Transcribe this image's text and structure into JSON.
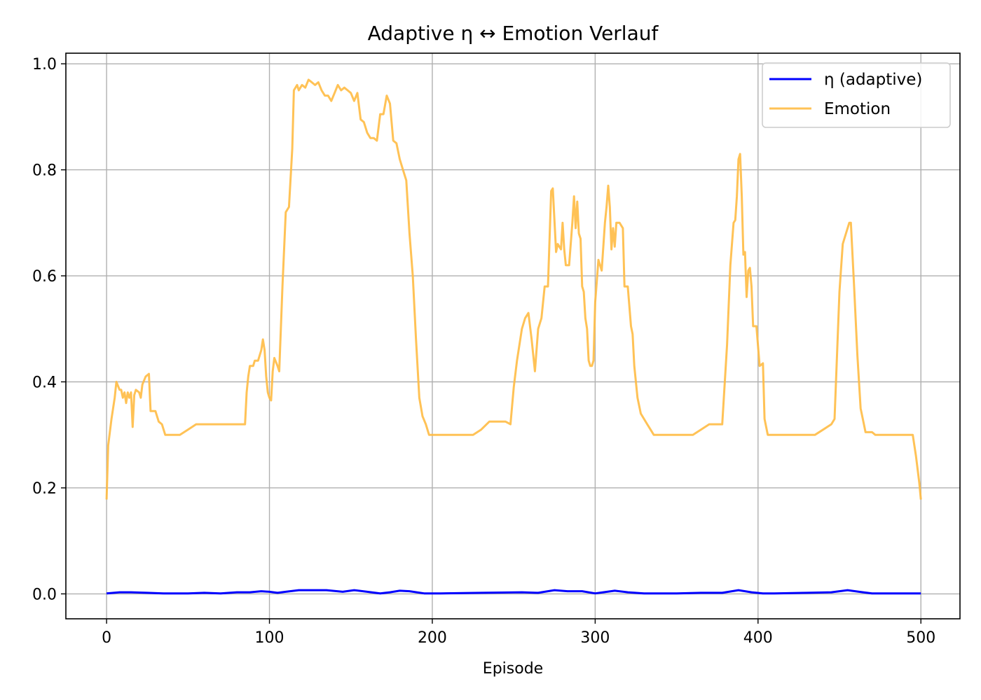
{
  "chart_data": {
    "type": "line",
    "title": "Adaptive η ↔ Emotion Verlauf",
    "xlabel": "Episode",
    "ylabel": "",
    "xlim": [
      -25,
      524
    ],
    "ylim": [
      -0.047,
      1.02
    ],
    "x_ticks": [
      0,
      100,
      200,
      300,
      400,
      500
    ],
    "y_ticks": [
      0.0,
      0.2,
      0.4,
      0.6,
      0.8,
      1.0
    ],
    "x_tick_labels": [
      "0",
      "100",
      "200",
      "300",
      "400",
      "500"
    ],
    "y_tick_labels": [
      "0.0",
      "0.2",
      "0.4",
      "0.6",
      "0.8",
      "1.0"
    ],
    "grid": true,
    "legend_position": "top-right",
    "series": [
      {
        "name": "η (adaptive)",
        "color": "#0000ff",
        "points": [
          [
            0,
            0.001
          ],
          [
            8,
            0.003
          ],
          [
            15,
            0.003
          ],
          [
            25,
            0.002
          ],
          [
            35,
            0.001
          ],
          [
            50,
            0.001
          ],
          [
            60,
            0.002
          ],
          [
            70,
            0.001
          ],
          [
            80,
            0.003
          ],
          [
            88,
            0.003
          ],
          [
            95,
            0.005
          ],
          [
            100,
            0.004
          ],
          [
            105,
            0.002
          ],
          [
            110,
            0.004
          ],
          [
            118,
            0.007
          ],
          [
            125,
            0.007
          ],
          [
            135,
            0.007
          ],
          [
            145,
            0.004
          ],
          [
            152,
            0.007
          ],
          [
            160,
            0.004
          ],
          [
            168,
            0.001
          ],
          [
            174,
            0.003
          ],
          [
            180,
            0.006
          ],
          [
            186,
            0.005
          ],
          [
            195,
            0.001
          ],
          [
            205,
            0.001
          ],
          [
            230,
            0.002
          ],
          [
            255,
            0.003
          ],
          [
            265,
            0.002
          ],
          [
            275,
            0.007
          ],
          [
            283,
            0.005
          ],
          [
            292,
            0.005
          ],
          [
            300,
            0.001
          ],
          [
            305,
            0.003
          ],
          [
            312,
            0.006
          ],
          [
            320,
            0.003
          ],
          [
            330,
            0.001
          ],
          [
            350,
            0.001
          ],
          [
            365,
            0.002
          ],
          [
            378,
            0.002
          ],
          [
            388,
            0.007
          ],
          [
            396,
            0.003
          ],
          [
            403,
            0.001
          ],
          [
            410,
            0.001
          ],
          [
            430,
            0.002
          ],
          [
            445,
            0.003
          ],
          [
            455,
            0.007
          ],
          [
            462,
            0.004
          ],
          [
            470,
            0.001
          ],
          [
            500,
            0.001
          ]
        ]
      },
      {
        "name": "Emotion",
        "color": "#ffbb44",
        "points": [
          [
            0,
            0.178
          ],
          [
            1,
            0.28
          ],
          [
            3,
            0.33
          ],
          [
            5,
            0.37
          ],
          [
            6,
            0.4
          ],
          [
            8,
            0.385
          ],
          [
            9,
            0.385
          ],
          [
            10,
            0.37
          ],
          [
            11,
            0.38
          ],
          [
            12,
            0.36
          ],
          [
            13,
            0.38
          ],
          [
            14,
            0.37
          ],
          [
            15,
            0.38
          ],
          [
            16,
            0.315
          ],
          [
            17,
            0.375
          ],
          [
            18,
            0.385
          ],
          [
            20,
            0.38
          ],
          [
            21,
            0.37
          ],
          [
            22,
            0.395
          ],
          [
            24,
            0.41
          ],
          [
            26,
            0.415
          ],
          [
            27,
            0.345
          ],
          [
            30,
            0.345
          ],
          [
            32,
            0.325
          ],
          [
            34,
            0.32
          ],
          [
            36,
            0.3
          ],
          [
            40,
            0.3
          ],
          [
            45,
            0.3
          ],
          [
            50,
            0.31
          ],
          [
            55,
            0.32
          ],
          [
            60,
            0.32
          ],
          [
            70,
            0.32
          ],
          [
            80,
            0.32
          ],
          [
            85,
            0.32
          ],
          [
            86,
            0.38
          ],
          [
            87,
            0.41
          ],
          [
            88,
            0.43
          ],
          [
            90,
            0.43
          ],
          [
            91,
            0.44
          ],
          [
            93,
            0.44
          ],
          [
            95,
            0.46
          ],
          [
            96,
            0.48
          ],
          [
            97,
            0.46
          ],
          [
            98,
            0.41
          ],
          [
            99,
            0.38
          ],
          [
            100,
            0.37
          ],
          [
            101,
            0.365
          ],
          [
            102,
            0.42
          ],
          [
            103,
            0.445
          ],
          [
            105,
            0.43
          ],
          [
            106,
            0.42
          ],
          [
            107,
            0.5
          ],
          [
            108,
            0.58
          ],
          [
            110,
            0.72
          ],
          [
            112,
            0.73
          ],
          [
            114,
            0.84
          ],
          [
            115,
            0.95
          ],
          [
            117,
            0.96
          ],
          [
            118,
            0.95
          ],
          [
            120,
            0.96
          ],
          [
            122,
            0.955
          ],
          [
            124,
            0.97
          ],
          [
            126,
            0.965
          ],
          [
            128,
            0.96
          ],
          [
            130,
            0.965
          ],
          [
            132,
            0.95
          ],
          [
            134,
            0.94
          ],
          [
            136,
            0.94
          ],
          [
            138,
            0.93
          ],
          [
            140,
            0.945
          ],
          [
            142,
            0.96
          ],
          [
            144,
            0.95
          ],
          [
            146,
            0.955
          ],
          [
            148,
            0.95
          ],
          [
            150,
            0.945
          ],
          [
            152,
            0.93
          ],
          [
            154,
            0.945
          ],
          [
            156,
            0.895
          ],
          [
            158,
            0.89
          ],
          [
            160,
            0.87
          ],
          [
            162,
            0.86
          ],
          [
            164,
            0.86
          ],
          [
            166,
            0.855
          ],
          [
            168,
            0.905
          ],
          [
            170,
            0.905
          ],
          [
            172,
            0.94
          ],
          [
            174,
            0.925
          ],
          [
            176,
            0.855
          ],
          [
            178,
            0.85
          ],
          [
            180,
            0.82
          ],
          [
            182,
            0.8
          ],
          [
            184,
            0.78
          ],
          [
            186,
            0.68
          ],
          [
            188,
            0.6
          ],
          [
            190,
            0.48
          ],
          [
            192,
            0.37
          ],
          [
            194,
            0.335
          ],
          [
            196,
            0.32
          ],
          [
            198,
            0.3
          ],
          [
            205,
            0.3
          ],
          [
            215,
            0.3
          ],
          [
            225,
            0.3
          ],
          [
            230,
            0.31
          ],
          [
            235,
            0.325
          ],
          [
            240,
            0.325
          ],
          [
            245,
            0.325
          ],
          [
            248,
            0.32
          ],
          [
            250,
            0.39
          ],
          [
            252,
            0.44
          ],
          [
            255,
            0.5
          ],
          [
            257,
            0.52
          ],
          [
            259,
            0.53
          ],
          [
            261,
            0.48
          ],
          [
            263,
            0.42
          ],
          [
            265,
            0.5
          ],
          [
            267,
            0.52
          ],
          [
            269,
            0.58
          ],
          [
            271,
            0.58
          ],
          [
            273,
            0.76
          ],
          [
            274,
            0.765
          ],
          [
            276,
            0.645
          ],
          [
            277,
            0.66
          ],
          [
            279,
            0.65
          ],
          [
            280,
            0.7
          ],
          [
            281,
            0.65
          ],
          [
            282,
            0.62
          ],
          [
            284,
            0.62
          ],
          [
            286,
            0.7
          ],
          [
            287,
            0.75
          ],
          [
            288,
            0.69
          ],
          [
            289,
            0.74
          ],
          [
            290,
            0.68
          ],
          [
            291,
            0.67
          ],
          [
            292,
            0.58
          ],
          [
            293,
            0.57
          ],
          [
            294,
            0.52
          ],
          [
            295,
            0.5
          ],
          [
            296,
            0.44
          ],
          [
            297,
            0.43
          ],
          [
            298,
            0.43
          ],
          [
            299,
            0.44
          ],
          [
            300,
            0.55
          ],
          [
            302,
            0.63
          ],
          [
            304,
            0.61
          ],
          [
            306,
            0.7
          ],
          [
            307,
            0.73
          ],
          [
            308,
            0.77
          ],
          [
            309,
            0.73
          ],
          [
            310,
            0.65
          ],
          [
            311,
            0.69
          ],
          [
            312,
            0.655
          ],
          [
            313,
            0.7
          ],
          [
            315,
            0.7
          ],
          [
            317,
            0.69
          ],
          [
            318,
            0.58
          ],
          [
            320,
            0.58
          ],
          [
            322,
            0.505
          ],
          [
            323,
            0.49
          ],
          [
            324,
            0.43
          ],
          [
            326,
            0.37
          ],
          [
            328,
            0.34
          ],
          [
            330,
            0.33
          ],
          [
            332,
            0.32
          ],
          [
            334,
            0.31
          ],
          [
            336,
            0.3
          ],
          [
            345,
            0.3
          ],
          [
            355,
            0.3
          ],
          [
            360,
            0.3
          ],
          [
            365,
            0.31
          ],
          [
            370,
            0.32
          ],
          [
            378,
            0.32
          ],
          [
            381,
            0.47
          ],
          [
            383,
            0.62
          ],
          [
            385,
            0.7
          ],
          [
            386,
            0.705
          ],
          [
            387,
            0.75
          ],
          [
            388,
            0.82
          ],
          [
            389,
            0.83
          ],
          [
            390,
            0.75
          ],
          [
            391,
            0.64
          ],
          [
            392,
            0.645
          ],
          [
            393,
            0.56
          ],
          [
            394,
            0.61
          ],
          [
            395,
            0.615
          ],
          [
            396,
            0.58
          ],
          [
            397,
            0.505
          ],
          [
            399,
            0.505
          ],
          [
            401,
            0.43
          ],
          [
            403,
            0.435
          ],
          [
            404,
            0.33
          ],
          [
            406,
            0.3
          ],
          [
            410,
            0.3
          ],
          [
            420,
            0.3
          ],
          [
            435,
            0.3
          ],
          [
            440,
            0.31
          ],
          [
            445,
            0.32
          ],
          [
            447,
            0.33
          ],
          [
            450,
            0.57
          ],
          [
            452,
            0.66
          ],
          [
            454,
            0.68
          ],
          [
            456,
            0.7
          ],
          [
            457,
            0.7
          ],
          [
            459,
            0.58
          ],
          [
            461,
            0.45
          ],
          [
            463,
            0.35
          ],
          [
            465,
            0.32
          ],
          [
            466,
            0.305
          ],
          [
            470,
            0.305
          ],
          [
            472,
            0.3
          ],
          [
            480,
            0.3
          ],
          [
            490,
            0.3
          ],
          [
            495,
            0.3
          ],
          [
            497,
            0.26
          ],
          [
            499,
            0.21
          ],
          [
            500,
            0.178
          ]
        ]
      }
    ]
  }
}
